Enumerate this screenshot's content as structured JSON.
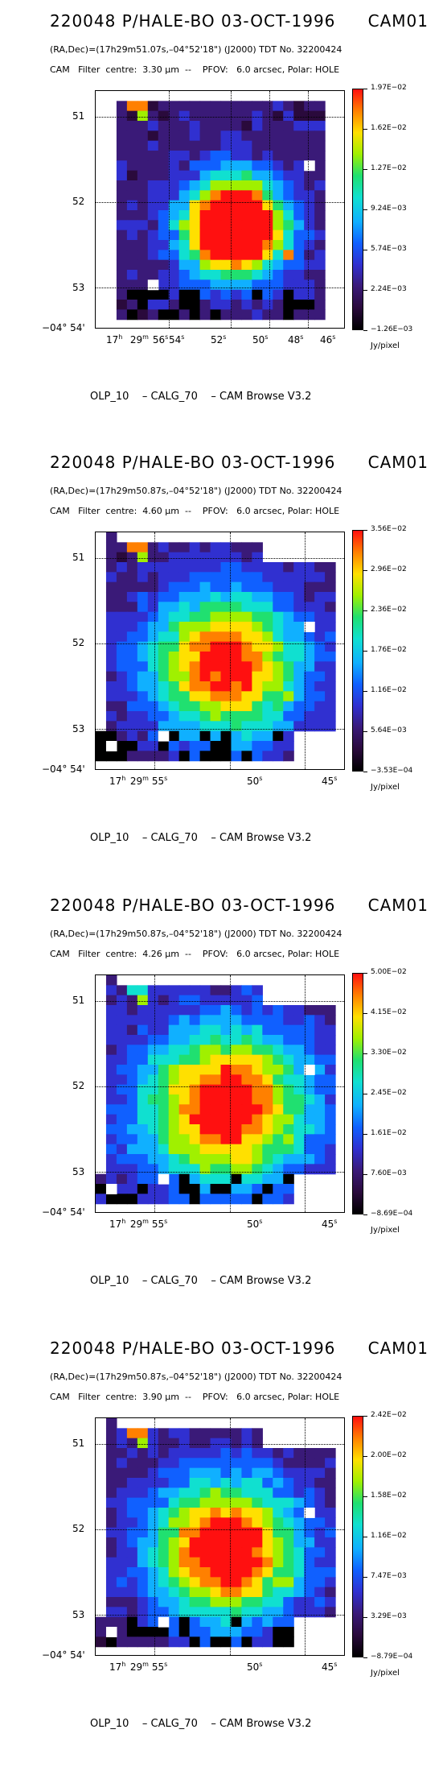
{
  "panels": [
    {
      "title": "220048 P/HALE-BO 03-OCT-1996",
      "camera": "CAM01",
      "coords": "(RA,Dec)=(17h29m51.07s,–04°52'18\") (J2000) TDT No. 32200424",
      "filter_prefix": "CAM   Filter  centre:  3.30 ",
      "filter_unit": "μm",
      "filter_suffix": "  --    PFOV:   6.0 arcsec, Polar: HOLE",
      "dec_labels": [
        "51",
        "52",
        "53"
      ],
      "dec_origin": "−04° 54'",
      "ra_labels": [
        {
          "main": "17",
          "sup": "h"
        },
        {
          "main": " 29",
          "sup": "m"
        },
        {
          "main": " 56",
          "sup": "s"
        },
        {
          "main": "54",
          "sup": "s"
        },
        {
          "main": "52",
          "sup": "s"
        },
        {
          "main": "50",
          "sup": "s"
        },
        {
          "main": "48",
          "sup": "s"
        },
        {
          "main": "46",
          "sup": "s"
        }
      ],
      "colorbar_labels": [
        "1.97E−02",
        "1.62E−02",
        "1.27E−02",
        "9.24E−03",
        "5.74E−03",
        "2.24E−03",
        "−1.26E−03"
      ],
      "units": "Jy/pixel",
      "footer": "OLP_10    – CALG_70    – CAM Browse V3.2",
      "source_intensity": 0.55,
      "source_spread": 3.2
    },
    {
      "title": "220048 P/HALE-BO 03-OCT-1996",
      "camera": "CAM01",
      "coords": "(RA,Dec)=(17h29m50.87s,–04°52'18\") (J2000) TDT No. 32200424",
      "filter_prefix": "CAM   Filter  centre:  4.60 ",
      "filter_unit": "μm",
      "filter_suffix": "  --    PFOV:   6.0 arcsec, Polar: HOLE",
      "dec_labels": [
        "51",
        "52",
        "53"
      ],
      "dec_origin": "−04° 54'",
      "ra_labels": [
        {
          "main": "17",
          "sup": "h"
        },
        {
          "main": " 29",
          "sup": "m"
        },
        {
          "main": " 55",
          "sup": "s"
        },
        {
          "main": "50",
          "sup": "s"
        },
        {
          "main": "45",
          "sup": "s"
        }
      ],
      "colorbar_labels": [
        "3.56E−02",
        "2.96E−02",
        "2.36E−02",
        "1.76E−02",
        "1.16E−02",
        "5.64E−03",
        "−3.53E−04"
      ],
      "units": "Jy/pixel",
      "footer": "OLP_10    – CALG_70    – CAM Browse V3.2",
      "source_intensity": 0.9,
      "source_spread": 5.0
    },
    {
      "title": "220048 P/HALE-BO 03-OCT-1996",
      "camera": "CAM01",
      "coords": "(RA,Dec)=(17h29m50.87s,–04°52'18\") (J2000) TDT No. 32200424",
      "filter_prefix": "CAM   Filter  centre:  4.26 ",
      "filter_unit": "μm",
      "filter_suffix": "  --    PFOV:   6.0 arcsec, Polar: HOLE",
      "dec_labels": [
        "51",
        "52",
        "53"
      ],
      "dec_origin": "−04° 54'",
      "ra_labels": [
        {
          "main": "17",
          "sup": "h"
        },
        {
          "main": " 29",
          "sup": "m"
        },
        {
          "main": " 55",
          "sup": "s"
        },
        {
          "main": "50",
          "sup": "s"
        },
        {
          "main": "45",
          "sup": "s"
        }
      ],
      "colorbar_labels": [
        "5.00E−02",
        "4.15E−02",
        "3.30E−02",
        "2.45E−02",
        "1.61E−02",
        "7.60E−03",
        "−8.69E−04"
      ],
      "units": "Jy/pixel",
      "footer": "OLP_10    – CALG_70    – CAM Browse V3.2",
      "source_intensity": 0.85,
      "source_spread": 5.5
    },
    {
      "title": "220048 P/HALE-BO 03-OCT-1996",
      "camera": "CAM01",
      "coords": "(RA,Dec)=(17h29m50.87s,–04°52'18\") (J2000) TDT No. 32200424",
      "filter_prefix": "CAM   Filter  centre:  3.90 ",
      "filter_unit": "μm",
      "filter_suffix": "  --    PFOV:   6.0 arcsec, Polar: HOLE",
      "dec_labels": [
        "51",
        "52",
        "53"
      ],
      "dec_origin": "−04° 54'",
      "ra_labels": [
        {
          "main": "17",
          "sup": "h"
        },
        {
          "main": " 29",
          "sup": "m"
        },
        {
          "main": " 55",
          "sup": "s"
        },
        {
          "main": "50",
          "sup": "s"
        },
        {
          "main": "45",
          "sup": "s"
        }
      ],
      "colorbar_labels": [
        "2.42E−02",
        "2.00E−02",
        "1.58E−02",
        "1.16E−02",
        "7.47E−03",
        "3.29E−03",
        "−8.79E−04"
      ],
      "units": "Jy/pixel",
      "footer": "OLP_10    – CALG_70    – CAM Browse V3.2",
      "source_intensity": 0.8,
      "source_spread": 4.8
    }
  ],
  "colors": {
    "colormap": [
      "#000000",
      "#2a0a3c",
      "#3a1a78",
      "#3030d0",
      "#1060ff",
      "#10b0ff",
      "#10e0d0",
      "#20e070",
      "#a0f000",
      "#ffe000",
      "#ff8000",
      "#ff1010"
    ]
  }
}
